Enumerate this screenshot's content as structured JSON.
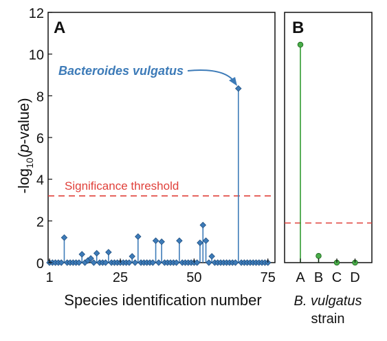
{
  "figure": {
    "y_axis_label_main": "-log",
    "y_axis_label_sub": "10",
    "y_axis_label_rest_pre": "(",
    "y_axis_label_rest_italic": "p",
    "y_axis_label_rest_post": "-value)"
  },
  "chart_data": [
    {
      "type": "stem",
      "panel_label": "A",
      "xlabel": "Species identification number",
      "ylabel": "-log10(p-value)",
      "xlim": [
        1,
        76
      ],
      "ylim": [
        0,
        12
      ],
      "x_ticks": [
        1,
        25,
        50,
        75
      ],
      "y_ticks": [
        0,
        2,
        4,
        6,
        8,
        10,
        12
      ],
      "x_tick_labels": [
        "1",
        "25",
        "50",
        "75"
      ],
      "y_tick_labels": [
        "0",
        "2",
        "4",
        "6",
        "8",
        "10",
        "12"
      ],
      "threshold": {
        "value": 3.2,
        "label": "Significance threshold",
        "color": "#e0403a"
      },
      "annotation": {
        "text": "Bacteroides vulgatus",
        "x": 65,
        "y": 8.35
      },
      "marker_color": "#3d7bb8",
      "series": [
        {
          "x": [
            1,
            2,
            3,
            4,
            5,
            6,
            7,
            8,
            9,
            10,
            11,
            12,
            13,
            14,
            15,
            16,
            17,
            18,
            19,
            20,
            21,
            22,
            23,
            24,
            25,
            26,
            27,
            28,
            29,
            30,
            31,
            32,
            33,
            34,
            35,
            36,
            37,
            38,
            39,
            40,
            41,
            42,
            43,
            44,
            45,
            46,
            47,
            48,
            49,
            50,
            51,
            52,
            53,
            54,
            55,
            56,
            57,
            58,
            59,
            60,
            61,
            62,
            63,
            64,
            65,
            66,
            67,
            68,
            69,
            70,
            71,
            72,
            73,
            74,
            75
          ],
          "values": [
            0,
            0,
            0,
            0,
            0,
            1.2,
            0,
            0,
            0,
            0,
            0,
            0.4,
            0,
            0.1,
            0.2,
            0,
            0.45,
            0,
            0,
            0,
            0.5,
            0,
            0,
            0,
            0,
            0,
            0,
            0,
            0.3,
            0,
            1.25,
            0,
            0,
            0,
            0,
            0,
            1.05,
            0,
            1.0,
            0,
            0,
            0,
            0,
            0,
            1.05,
            0,
            0,
            0,
            0,
            0,
            0,
            0.95,
            1.8,
            1.05,
            0,
            0.3,
            0,
            0,
            0,
            0,
            0,
            0,
            0,
            0,
            8.35,
            0,
            0,
            0,
            0,
            0,
            0,
            0,
            0,
            0,
            0
          ]
        }
      ]
    },
    {
      "type": "stem",
      "panel_label": "B",
      "xlabel_italic": "B. vulgatus",
      "xlabel_line2": "strain",
      "ylim": [
        0,
        12
      ],
      "categories": [
        "A",
        "B",
        "C",
        "D"
      ],
      "threshold": {
        "value": 1.9,
        "color": "#e0403a"
      },
      "marker_color": "#2f9a2f",
      "series": [
        {
          "values": [
            10.45,
            0.32,
            0,
            0
          ]
        }
      ]
    }
  ]
}
